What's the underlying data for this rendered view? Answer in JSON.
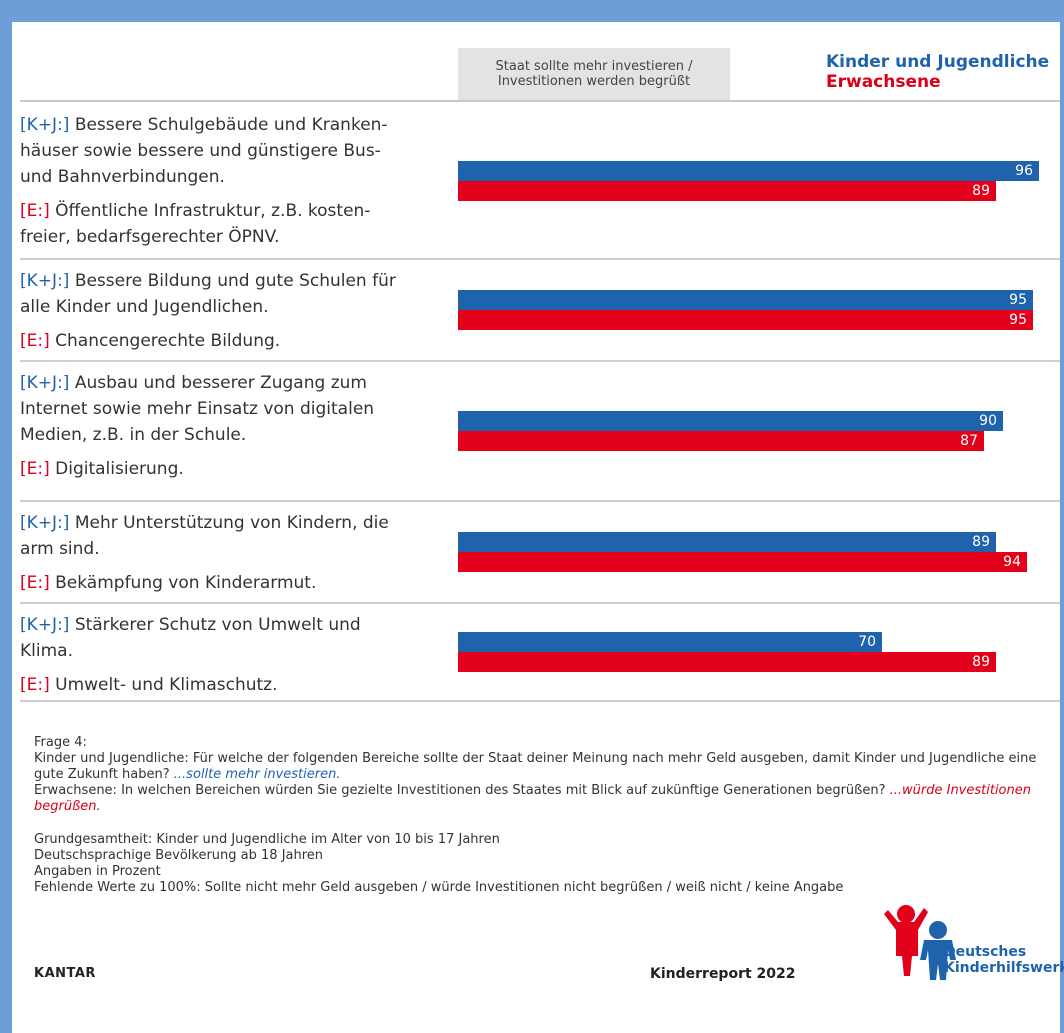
{
  "legend": {
    "series_blue": "Kinder und Jugendliche",
    "series_red": "Erwachsene",
    "header_line1": "Staat sollte mehr investieren /",
    "header_line2": "Investitionen werden begrüßt"
  },
  "colors": {
    "blue": "#1f63ad",
    "red": "#e2001a",
    "frame": "#6d9fd6"
  },
  "chart_data": {
    "type": "bar",
    "orientation": "horizontal",
    "xlim": [
      0,
      100
    ],
    "unit": "Prozent",
    "categories": [
      {
        "kj_tag": "[K+J:]",
        "kj_lines": [
          "Bessere Schulgebäude und Kranken-",
          "häuser sowie bessere und günstigere Bus-",
          "und Bahnverbindungen."
        ],
        "e_tag": "[E:]",
        "e_lines": [
          "Öffentliche Infrastruktur, z.B. kosten-",
          "freier, bedarfsgerechter ÖPNV."
        ]
      },
      {
        "kj_tag": "[K+J:]",
        "kj_lines": [
          "Bessere Bildung und gute Schulen für",
          "alle Kinder und Jugendlichen."
        ],
        "e_tag": "[E:]",
        "e_lines": [
          "Chancengerechte Bildung."
        ]
      },
      {
        "kj_tag": "[K+J:]",
        "kj_lines": [
          "Ausbau und besserer Zugang zum",
          "Internet sowie mehr Einsatz von digitalen",
          "Medien, z.B. in der Schule."
        ],
        "e_tag": "[E:]",
        "e_lines": [
          "Digitalisierung."
        ]
      },
      {
        "kj_tag": "[K+J:]",
        "kj_lines": [
          "Mehr Unterstützung von Kindern, die",
          "arm sind."
        ],
        "e_tag": "[E:]",
        "e_lines": [
          "Bekämpfung von Kinderarmut."
        ]
      },
      {
        "kj_tag": "[K+J:]",
        "kj_lines": [
          "Stärkerer Schutz von Umwelt und",
          "Klima."
        ],
        "e_tag": "[E:]",
        "e_lines": [
          "Umwelt- und Klimaschutz."
        ]
      }
    ],
    "series": [
      {
        "name": "Kinder und Jugendliche",
        "values": [
          96,
          95,
          90,
          89,
          70
        ]
      },
      {
        "name": "Erwachsene",
        "values": [
          89,
          95,
          87,
          94,
          89
        ]
      }
    ]
  },
  "notes": {
    "frage": "Frage 4:",
    "kj_text": "Kinder und Jugendliche: Für welche der folgenden Bereiche sollte der Staat deiner Meinung nach mehr Geld ausgeben, damit Kinder und Jugendliche eine gute Zukunft haben? ",
    "kj_emph": "...sollte mehr investieren.",
    "e_text": "Erwachsene: In welchen Bereichen würden Sie gezielte Investitionen des Staates mit Blick auf zukünftige Generationen begrüßen? ",
    "e_emph": "...würde Investitionen begrüßen.",
    "basis1": "Grundgesamtheit: Kinder und Jugendliche im Alter von 10 bis 17 Jahren",
    "basis2": "Deutschsprachige Bevölkerung ab 18 Jahren",
    "basis3": "Angaben in Prozent",
    "basis4": "Fehlende Werte zu 100%: Sollte nicht mehr Geld ausgeben / würde Investitionen nicht begrüßen / weiß nicht / keine Angabe"
  },
  "footer": {
    "left": "KANTAR",
    "center": "Kinderreport 2022",
    "logo_line1": "Deutsches",
    "logo_line2": "Kinderhilfswerk"
  }
}
